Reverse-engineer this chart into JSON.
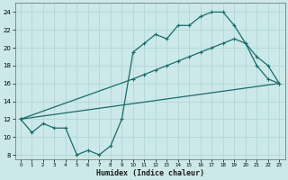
{
  "xlabel": "Humidex (Indice chaleur)",
  "bg_color": "#cce8e8",
  "grid_color": "#b0d8d8",
  "line_color": "#1a6b6b",
  "xlim": [
    -0.5,
    23.5
  ],
  "ylim": [
    7.5,
    25
  ],
  "xticks": [
    0,
    1,
    2,
    3,
    4,
    5,
    6,
    7,
    8,
    9,
    10,
    11,
    12,
    13,
    14,
    15,
    16,
    17,
    18,
    19,
    20,
    21,
    22,
    23
  ],
  "yticks": [
    8,
    10,
    12,
    14,
    16,
    18,
    20,
    22,
    24
  ],
  "line1_x": [
    0,
    1,
    2,
    3,
    4,
    5,
    6,
    7,
    8,
    9,
    10,
    11,
    12,
    13,
    14,
    15,
    16,
    17,
    18,
    19,
    20,
    21,
    22,
    23
  ],
  "line1_y": [
    12,
    10.5,
    11.5,
    11,
    11,
    8,
    8.5,
    8,
    9,
    12,
    19.5,
    20.5,
    21.5,
    21,
    22.5,
    22.5,
    23.5,
    24,
    24,
    22.5,
    20.5,
    18,
    16.5,
    16
  ],
  "line2_x": [
    0,
    10,
    11,
    12,
    13,
    14,
    15,
    16,
    17,
    18,
    19,
    20,
    21,
    22,
    23
  ],
  "line2_y": [
    12,
    16.5,
    17,
    17.5,
    18,
    18.5,
    19,
    19.5,
    20,
    20.5,
    21,
    20.5,
    19,
    18,
    16
  ],
  "line3_x": [
    0,
    23
  ],
  "line3_y": [
    12,
    16
  ],
  "figsize": [
    3.2,
    2.0
  ],
  "dpi": 100
}
